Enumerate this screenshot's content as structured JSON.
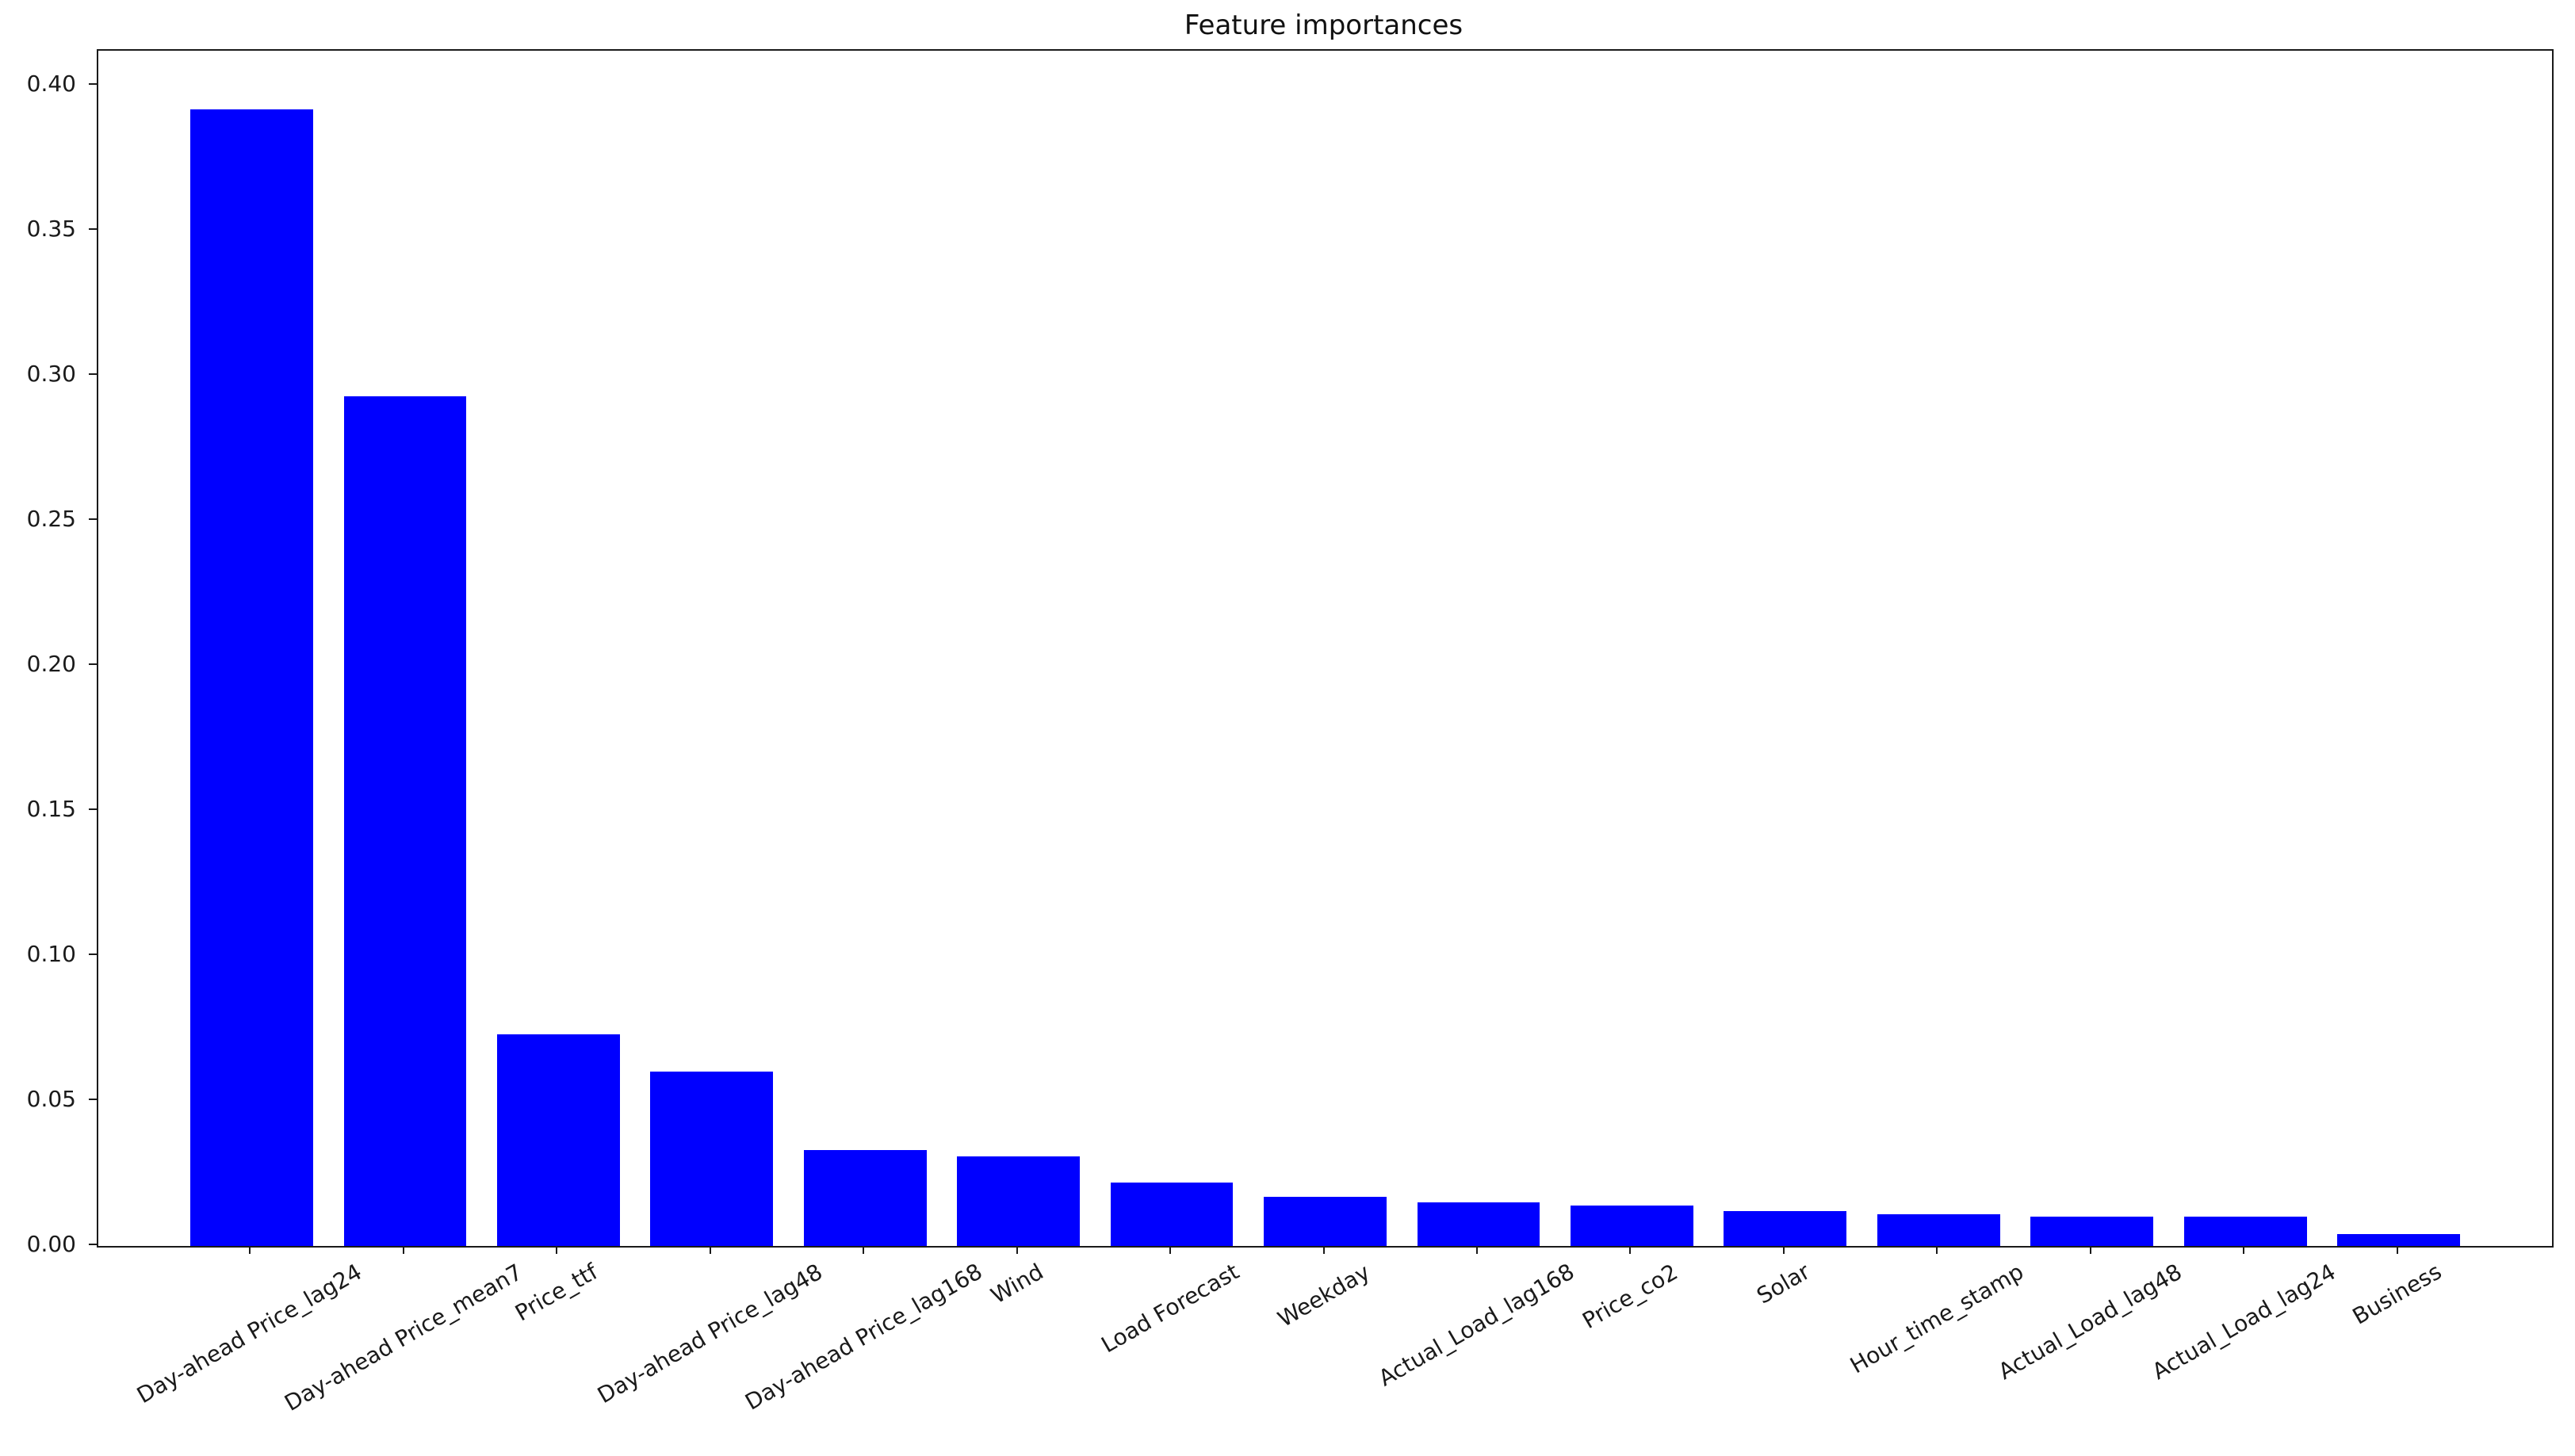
{
  "chart_data": {
    "type": "bar",
    "title": "Feature importances",
    "xlabel": "",
    "ylabel": "",
    "categories": [
      "Day-ahead Price_lag24",
      "Day-ahead Price_mean7",
      "Price_ttf",
      "Day-ahead Price_lag48",
      "Day-ahead Price_lag168",
      "Wind",
      "Load Forecast",
      "Weekday",
      "Actual_Load_lag168",
      "Price_co2",
      "Solar",
      "Hour_time_stamp",
      "Actual_Load_lag48",
      "Actual_Load_lag24",
      "Business"
    ],
    "values": [
      0.392,
      0.293,
      0.073,
      0.06,
      0.033,
      0.031,
      0.022,
      0.017,
      0.015,
      0.014,
      0.012,
      0.011,
      0.01,
      0.01,
      0.004
    ],
    "ytick_labels": [
      "0.00",
      "0.05",
      "0.10",
      "0.15",
      "0.20",
      "0.25",
      "0.30",
      "0.35",
      "0.40"
    ],
    "ylim": [
      0,
      0.4121
    ],
    "xlim_units": [
      -1,
      15
    ],
    "bar_width_units": 0.8,
    "bar_color": "#0000ff",
    "axis_color": "#1a1a1a",
    "text_color": "#1a1a1a",
    "background_color": "#ffffff",
    "grid": false,
    "legend": null,
    "xtick_rotation_deg": 30
  }
}
